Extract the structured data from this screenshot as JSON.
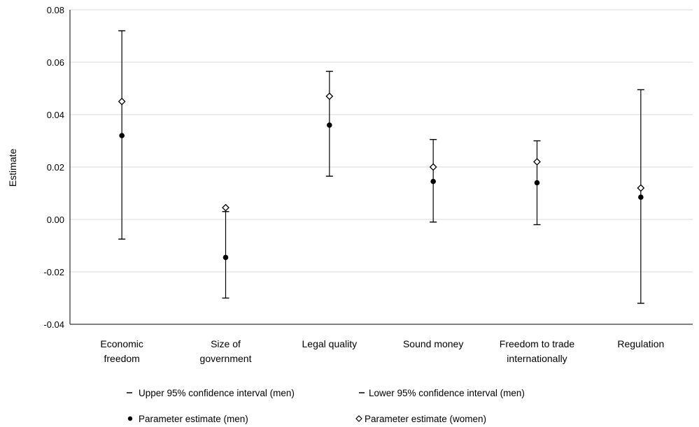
{
  "chart_data": {
    "type": "scatter",
    "ylabel": "Estimate",
    "ylim": [
      -0.04,
      0.08
    ],
    "yticks": [
      "0.08",
      "0.06",
      "0.04",
      "0.02",
      "0.00",
      "-0.02",
      "-0.04"
    ],
    "ytick_values": [
      0.08,
      0.06,
      0.04,
      0.02,
      0.0,
      -0.02,
      -0.04
    ],
    "grid": true,
    "categories": [
      [
        "Economic",
        "freedom"
      ],
      [
        "Size of",
        "government"
      ],
      [
        "Legal quality"
      ],
      [
        "Sound money"
      ],
      [
        "Freedom to trade",
        "internationally"
      ],
      [
        "Regulation"
      ]
    ],
    "series": [
      {
        "name": "Upper 95% confidence interval (men)",
        "values": [
          0.072,
          0.003,
          0.0565,
          0.0305,
          0.03,
          0.0495
        ]
      },
      {
        "name": "Lower 95% confidence interval (men)",
        "values": [
          -0.0075,
          -0.03,
          0.0165,
          -0.001,
          -0.002,
          -0.032
        ]
      },
      {
        "name": "Parameter estimate (men)",
        "values": [
          0.032,
          -0.0145,
          0.036,
          0.0145,
          0.014,
          0.0085
        ]
      },
      {
        "name": "Parameter estimate (women)",
        "values": [
          0.045,
          0.0045,
          0.047,
          0.02,
          0.022,
          0.012
        ]
      }
    ],
    "legend": {
      "position": "bottom",
      "upper": "Upper 95% confidence interval (men)",
      "lower": "Lower 95% confidence interval (men)",
      "men": "Parameter estimate (men)",
      "women": "Parameter estimate (women)"
    }
  }
}
